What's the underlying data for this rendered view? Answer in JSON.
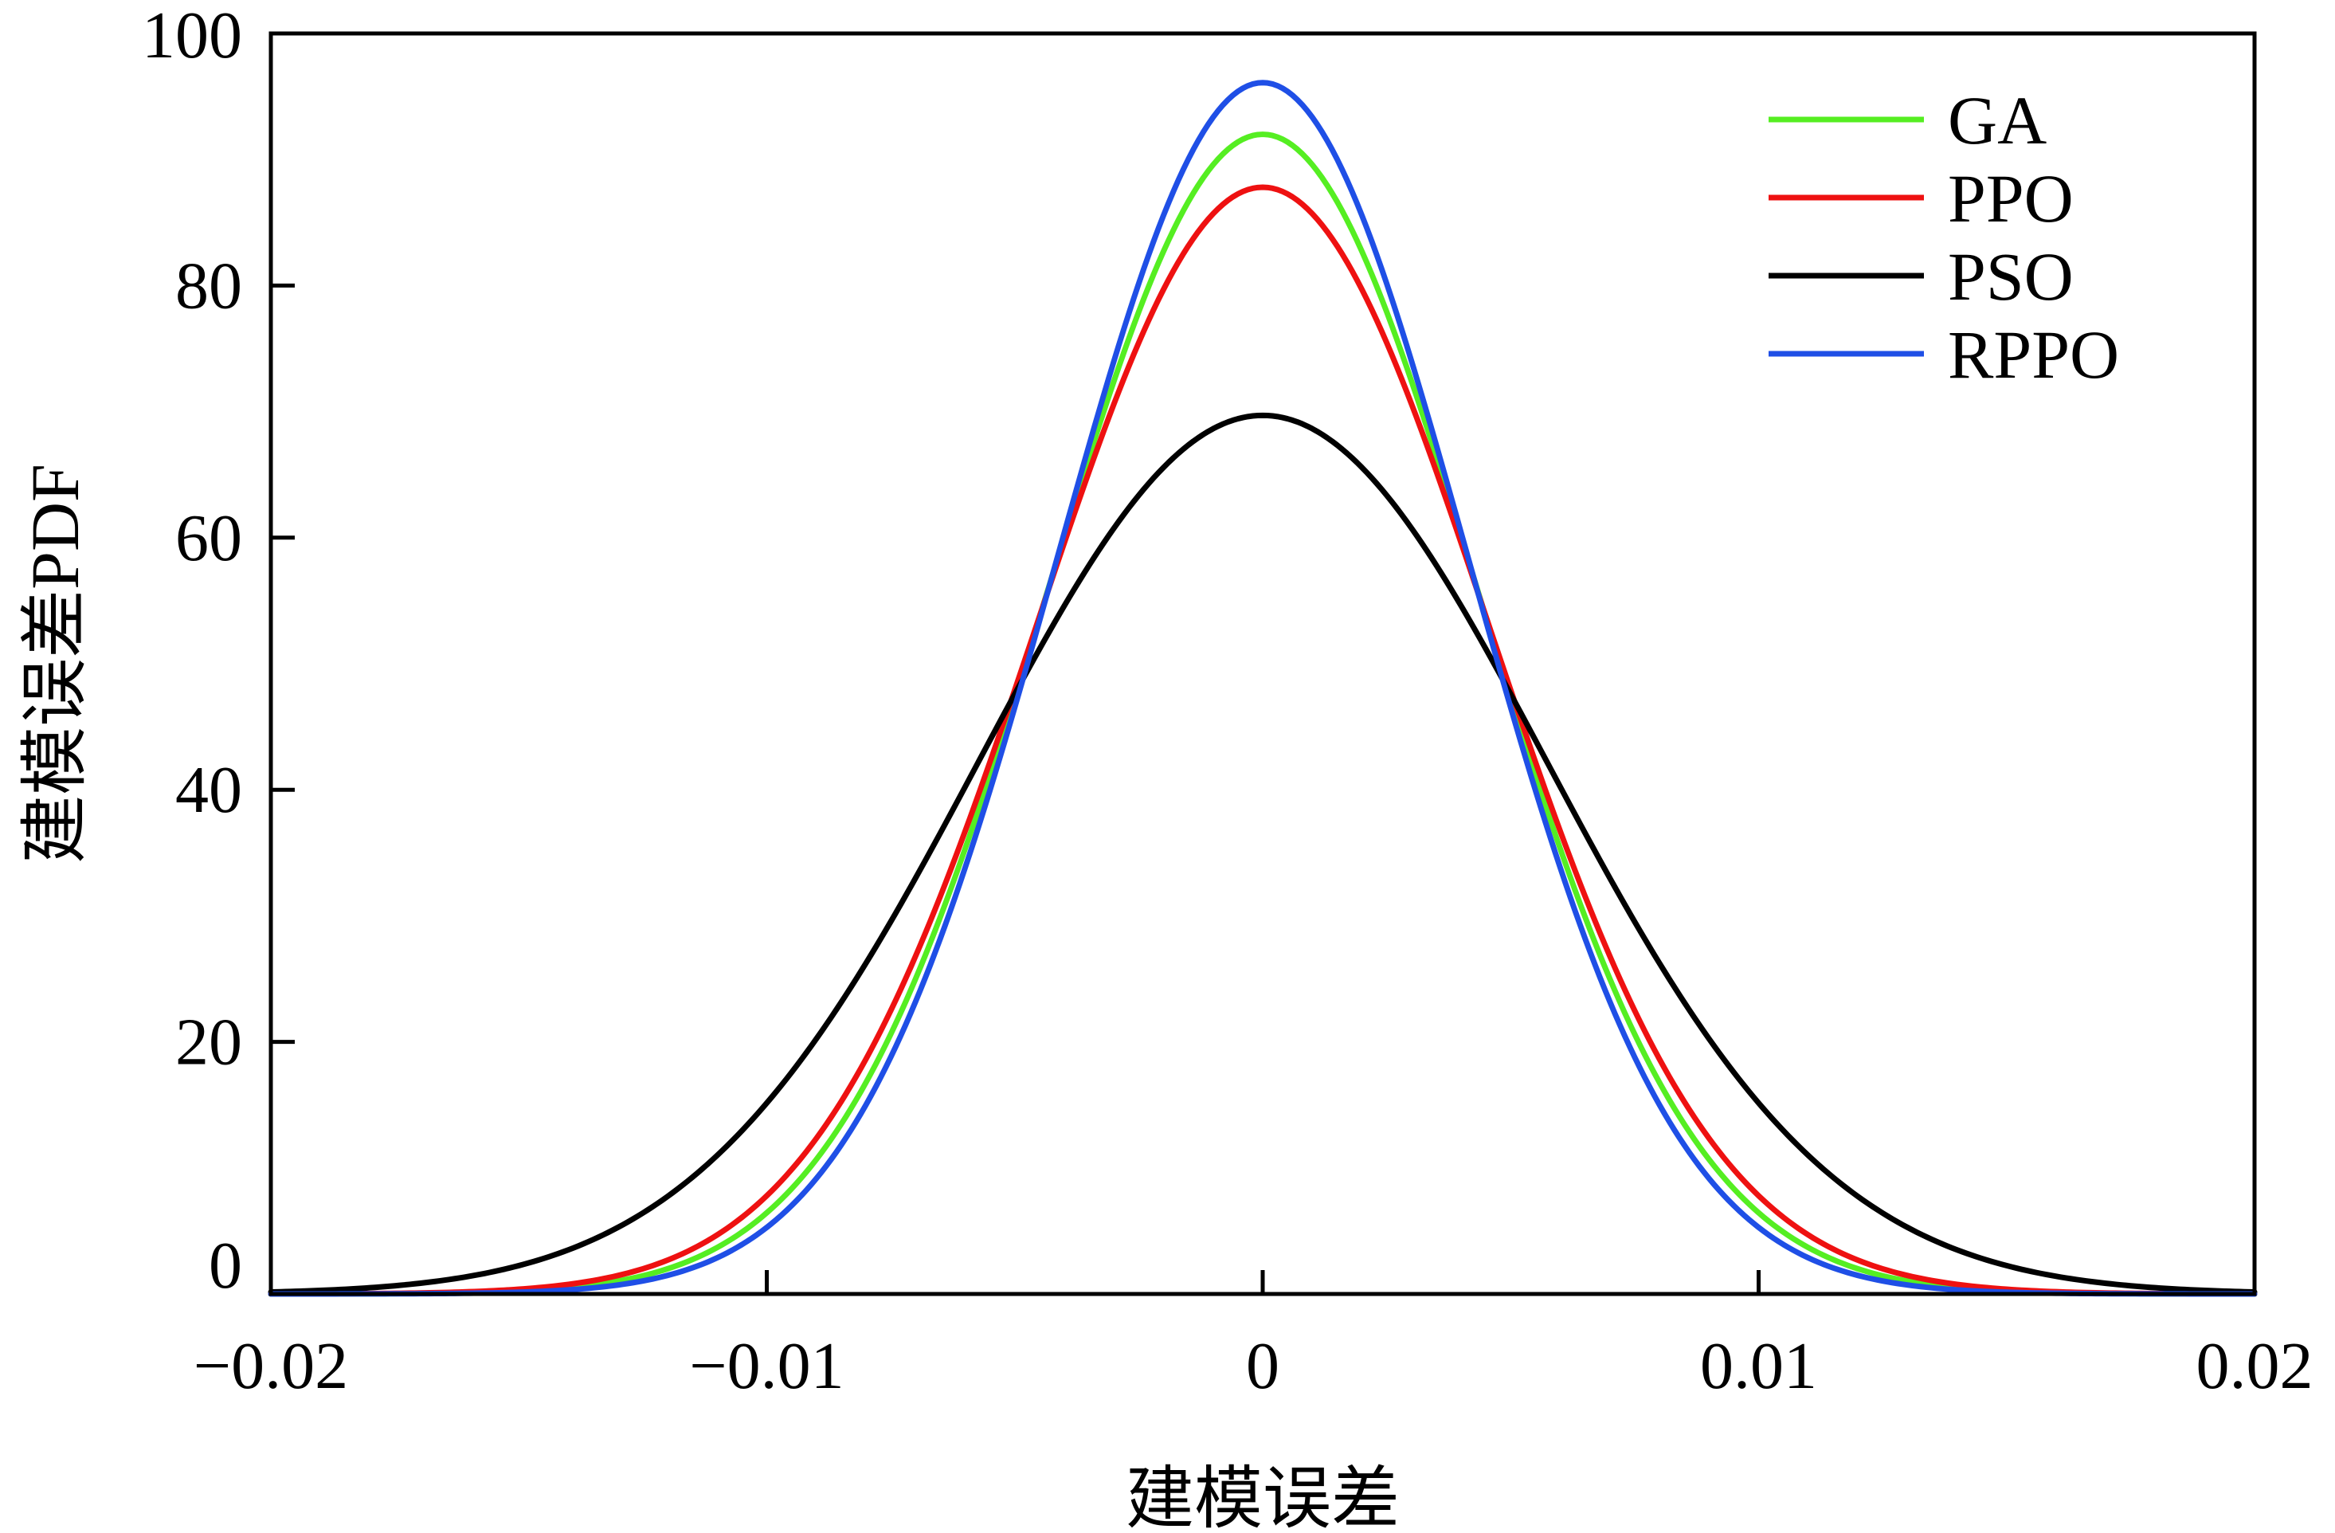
{
  "chart_data": {
    "type": "line",
    "title": "",
    "xlabel": "建模误差",
    "ylabel": "建模误差PDF",
    "xlim": [
      -0.02,
      0.02
    ],
    "ylim": [
      0,
      100
    ],
    "xticks": [
      -0.02,
      -0.01,
      0,
      0.01,
      0.02
    ],
    "xtick_labels": [
      "−0.02",
      "−0.01",
      "0",
      "0.01",
      "0.02"
    ],
    "yticks": [
      0,
      20,
      40,
      60,
      80,
      100
    ],
    "ytick_labels": [
      "0",
      "20",
      "40",
      "60",
      "80",
      "100"
    ],
    "grid": false,
    "legend_position": "top-right",
    "series": [
      {
        "name": "GA",
        "color": "#55ee22",
        "distribution": "normal",
        "mean": 0,
        "peak": 92.0
      },
      {
        "name": "PPO",
        "color": "#ee1111",
        "distribution": "normal",
        "mean": 0,
        "peak": 87.8
      },
      {
        "name": "PSO",
        "color": "#000000",
        "distribution": "normal",
        "mean": 0,
        "peak": 69.7
      },
      {
        "name": "RPPO",
        "color": "#1f4fe6",
        "distribution": "normal",
        "mean": 0,
        "peak": 96.1
      }
    ]
  }
}
